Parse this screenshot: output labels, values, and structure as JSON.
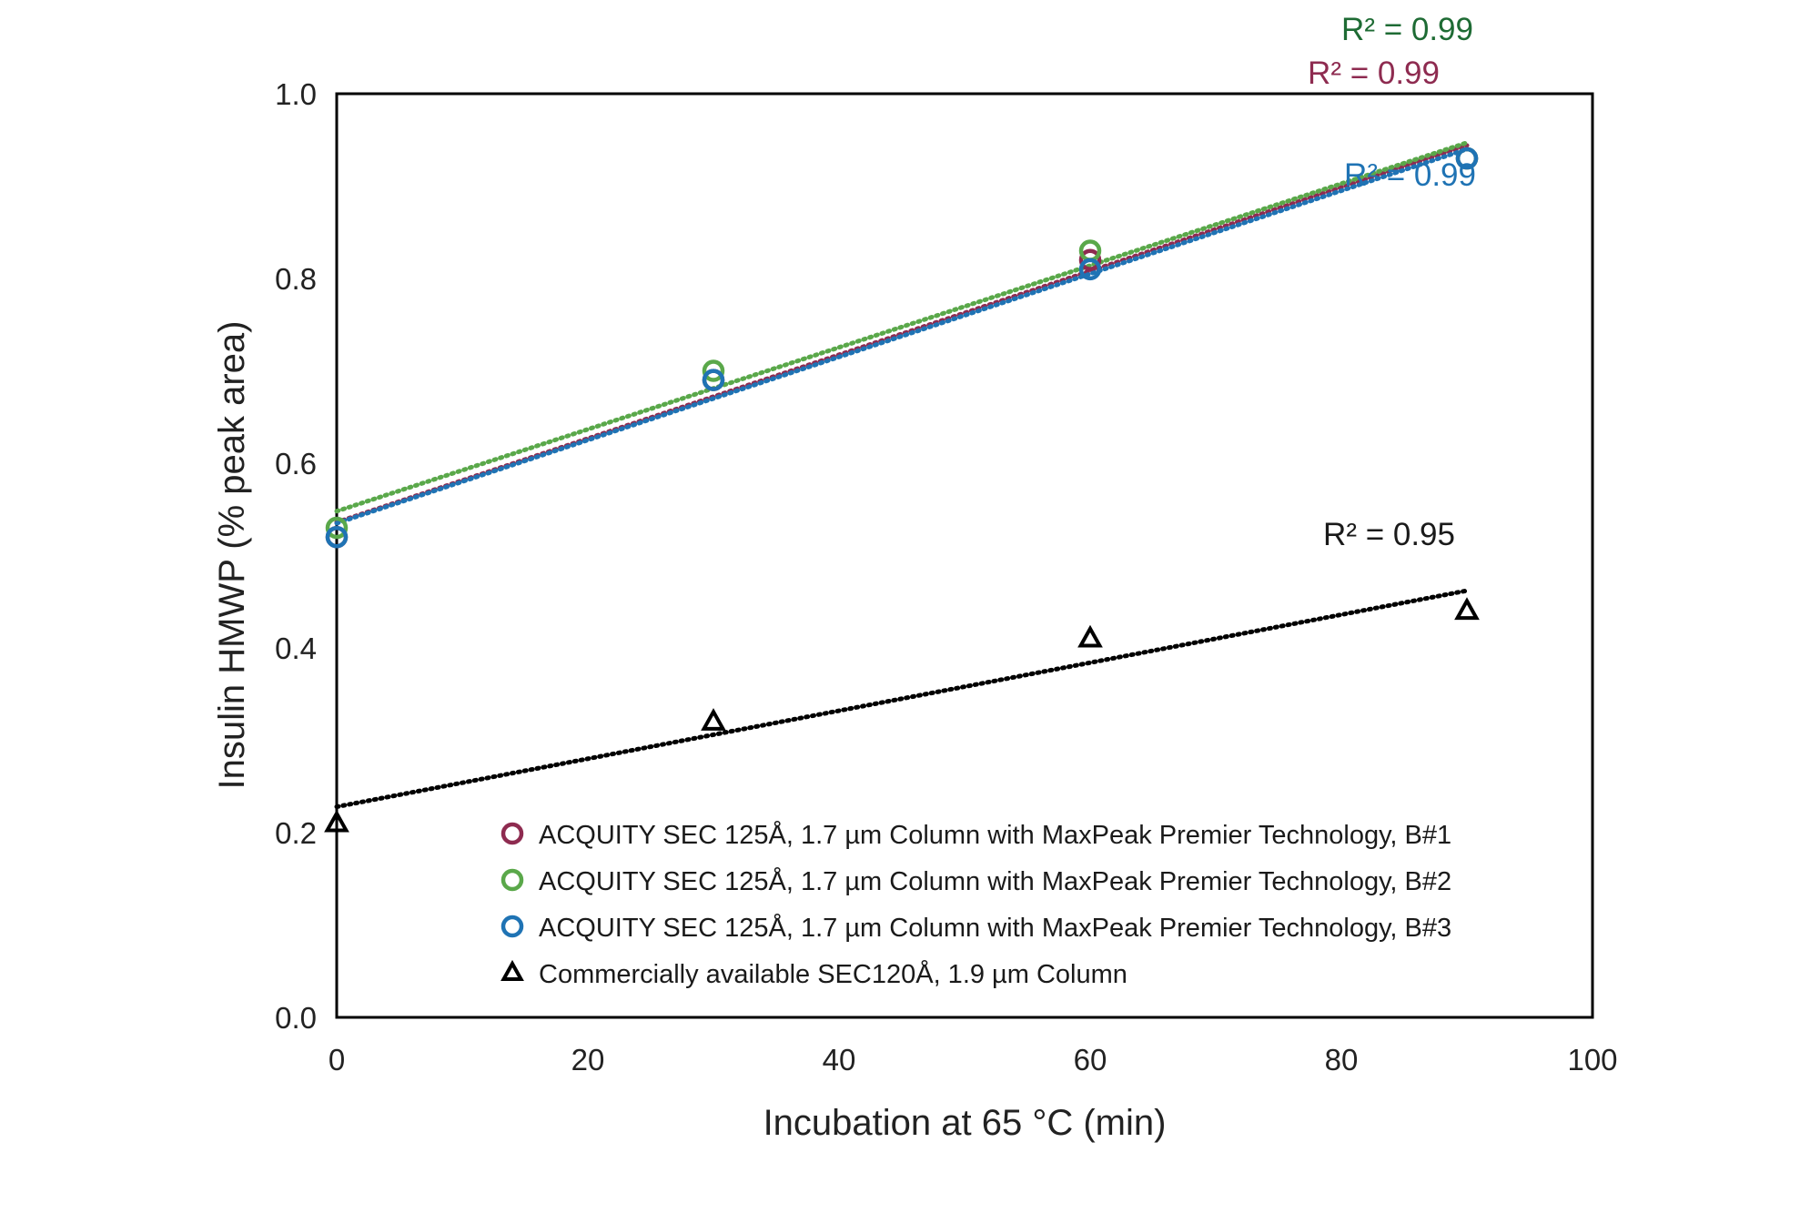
{
  "chart_data": {
    "type": "scatter",
    "xlabel": "Incubation at 65 °C (min)",
    "ylabel": "Insulin HMWP (% peak area)",
    "xlim": [
      0,
      100
    ],
    "ylim": [
      0.0,
      1.0
    ],
    "x_ticks": [
      "0",
      "20",
      "40",
      "60",
      "80",
      "100"
    ],
    "y_ticks": [
      "0.0",
      "0.2",
      "0.4",
      "0.6",
      "0.8",
      "1.0"
    ],
    "grid": false,
    "legend_position": "bottom-right",
    "series": [
      {
        "name": "ACQUITY SEC 125Å, 1.7 µm Column with MaxPeak Premier Technology, B#1",
        "marker": "circle",
        "color": "#8e2b50",
        "x": [
          0,
          30,
          60,
          90
        ],
        "y": [
          0.52,
          0.69,
          0.82,
          0.93
        ],
        "trendline": "linear",
        "r2_label": "R² = 0.99"
      },
      {
        "name": "ACQUITY SEC 125Å, 1.7 µm Column with MaxPeak Premier Technology, B#2",
        "marker": "circle",
        "color": "#5aa84a",
        "x": [
          0,
          30,
          60,
          90
        ],
        "y": [
          0.53,
          0.7,
          0.83,
          0.93
        ],
        "trendline": "linear",
        "r2_label": "R² = 0.99"
      },
      {
        "name": "ACQUITY SEC 125Å, 1.7 µm Column with MaxPeak Premier Technology, B#3",
        "marker": "circle",
        "color": "#1f73b4",
        "x": [
          0,
          30,
          60,
          90
        ],
        "y": [
          0.52,
          0.69,
          0.81,
          0.93
        ],
        "trendline": "linear",
        "r2_label": "R² = 0.99"
      },
      {
        "name": "Commercially available SEC120Å, 1.9 µm Column",
        "marker": "triangle",
        "color": "#000000",
        "x": [
          0,
          30,
          60,
          90
        ],
        "y": [
          0.21,
          0.32,
          0.41,
          0.44
        ],
        "trendline": "linear",
        "r2_label": "R² = 0.95"
      }
    ],
    "r2_label_colors": [
      "#8e2b50",
      "#1e6b34",
      "#1f73b4",
      "#1a1a1a"
    ]
  }
}
